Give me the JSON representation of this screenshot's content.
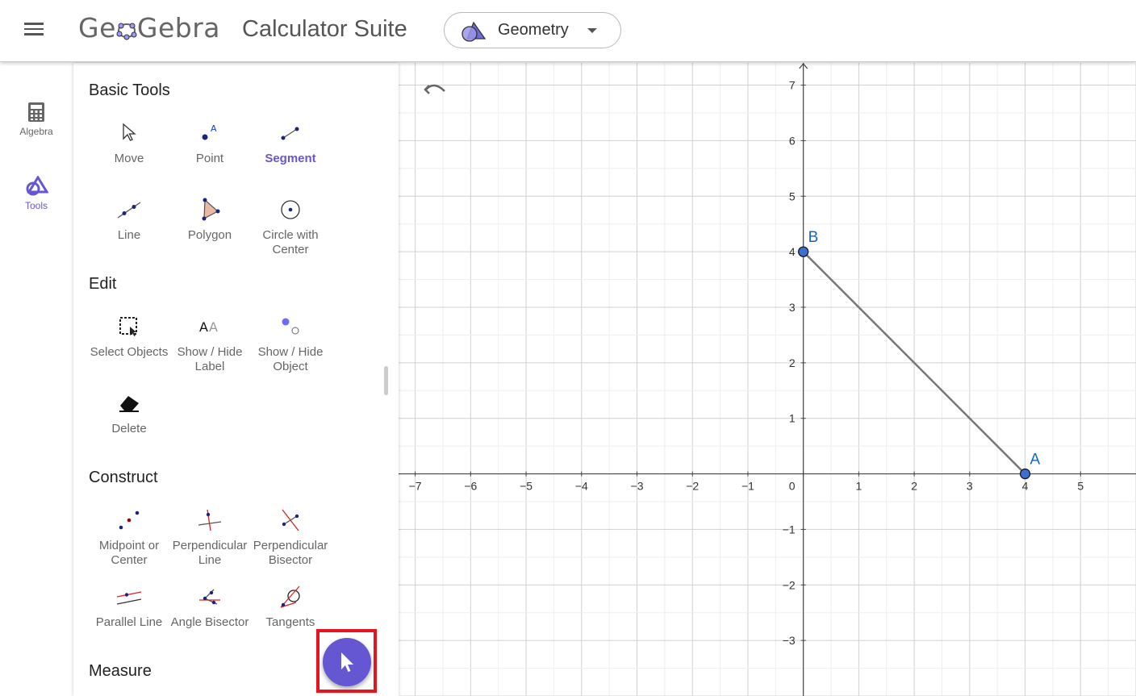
{
  "header": {
    "menu_icon": "hamburger-menu-icon",
    "logo_text_1": "Ge",
    "logo_text_2": "Gebra",
    "suite_title": "Calculator Suite",
    "app_selector": {
      "label": "Geometry",
      "icon": "geometry-app-icon"
    }
  },
  "side_rail": {
    "items": [
      {
        "label": "Algebra",
        "icon": "calculator-icon",
        "active": false
      },
      {
        "label": "Tools",
        "icon": "geometry-tools-icon",
        "active": true
      }
    ]
  },
  "tools_panel": {
    "sections": [
      {
        "title": "Basic Tools"
      },
      {
        "title": "Edit"
      },
      {
        "title": "Construct"
      },
      {
        "title": "Measure"
      }
    ],
    "basic_tools": [
      {
        "label": "Move",
        "icon": "move-arrow-icon"
      },
      {
        "label": "Point",
        "icon": "point-icon"
      },
      {
        "label": "Segment",
        "icon": "segment-icon",
        "selected": true
      },
      {
        "label": "Line",
        "icon": "line-icon"
      },
      {
        "label": "Polygon",
        "icon": "polygon-icon"
      },
      {
        "label": "Circle with Center",
        "icon": "circle-center-icon"
      }
    ],
    "edit_tools": [
      {
        "label": "Select Objects",
        "icon": "select-objects-icon"
      },
      {
        "label": "Show / Hide Label",
        "icon": "show-hide-label-icon"
      },
      {
        "label": "Show / Hide Object",
        "icon": "show-hide-object-icon"
      },
      {
        "label": "Delete",
        "icon": "eraser-icon"
      }
    ],
    "construct_tools": [
      {
        "label": "Midpoint or Center",
        "icon": "midpoint-icon"
      },
      {
        "label": "Perpendicular Line",
        "icon": "perpendicular-line-icon"
      },
      {
        "label": "Perpendicular Bisector",
        "icon": "perpendicular-bisector-icon"
      },
      {
        "label": "Parallel Line",
        "icon": "parallel-line-icon"
      },
      {
        "label": "Angle Bisector",
        "icon": "angle-bisector-icon"
      },
      {
        "label": "Tangents",
        "icon": "tangents-icon"
      }
    ]
  },
  "graphics": {
    "undo_icon": "undo-icon",
    "x_ticks": [
      "−7",
      "−6",
      "−5",
      "−4",
      "−3",
      "−2",
      "−1",
      "0",
      "1",
      "2",
      "3",
      "4",
      "5"
    ],
    "y_ticks": [
      "7",
      "6",
      "5",
      "4",
      "3",
      "2",
      "1",
      "−1",
      "−2",
      "−3"
    ],
    "x_range": [
      -7.3,
      6
    ],
    "y_range": [
      -4.0,
      7.4
    ],
    "points": [
      {
        "name": "A",
        "x": 4,
        "y": 0
      },
      {
        "name": "B",
        "x": 0,
        "y": 4
      }
    ],
    "segment": {
      "from": "A",
      "to": "B"
    },
    "colors": {
      "point_fill": "#3d6ed1",
      "segment": "#777777",
      "label": "#1565c0",
      "grid": "#d7d7d7",
      "axis": "#444444"
    }
  },
  "fab": {
    "icon": "cursor-arrow-icon"
  },
  "colors": {
    "accent": "#6557d2",
    "highlight": "#e8141b"
  }
}
